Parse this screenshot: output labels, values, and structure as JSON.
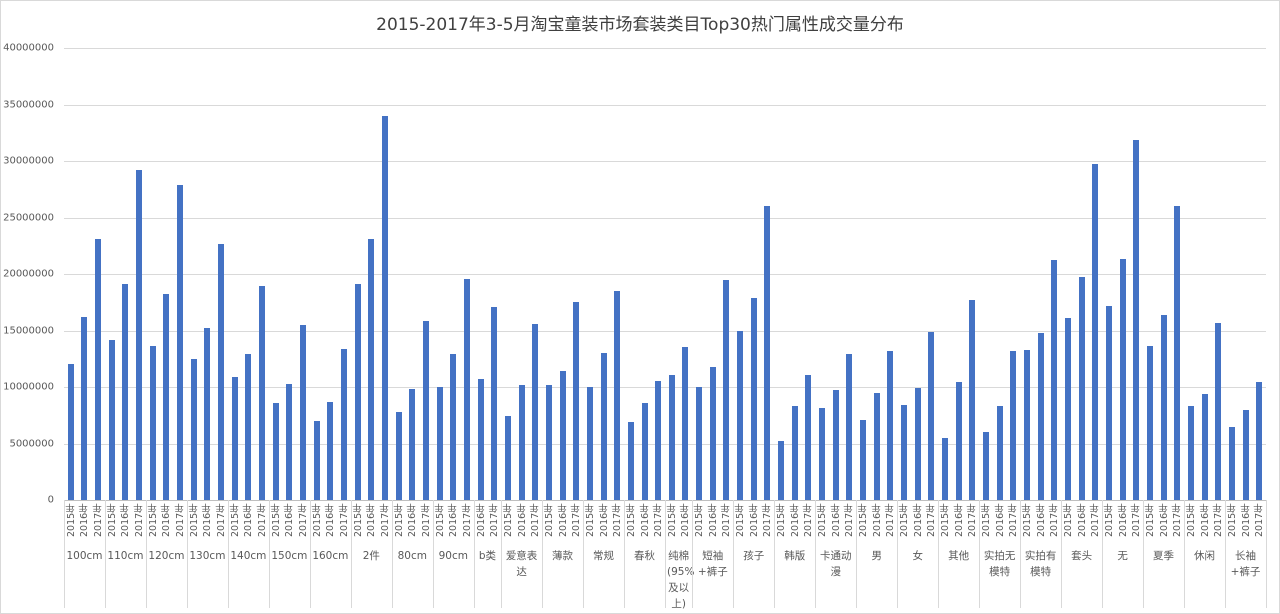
{
  "title": "2015-2017年3-5月淘宝童装市场套装类目Top30热门属性成交量分布",
  "chart_data": {
    "type": "bar",
    "title": "2015-2017年3-5月淘宝童装市场套装类目Top30热门属性成交量分布",
    "xlabel": "",
    "ylabel": "",
    "ylim": [
      0,
      40000000
    ],
    "yticks": [
      "0",
      "5000000",
      "10000000",
      "15000000",
      "20000000",
      "25000000",
      "30000000",
      "35000000",
      "40000000"
    ],
    "grid": true,
    "legend": "none",
    "color": "#4472c4",
    "groups": [
      {
        "category": "100cm",
        "years": [
          "2015年",
          "2016年",
          "2017年"
        ],
        "values": [
          12000000,
          16200000,
          23100000
        ]
      },
      {
        "category": "110cm",
        "years": [
          "2015年",
          "2016年",
          "2017年"
        ],
        "values": [
          14200000,
          19100000,
          29200000
        ]
      },
      {
        "category": "120cm",
        "years": [
          "2015年",
          "2016年",
          "2017年"
        ],
        "values": [
          13600000,
          18200000,
          27900000
        ]
      },
      {
        "category": "130cm",
        "years": [
          "2015年",
          "2016年",
          "2017年"
        ],
        "values": [
          12500000,
          15200000,
          22700000
        ]
      },
      {
        "category": "140cm",
        "years": [
          "2015年",
          "2016年",
          "2017年"
        ],
        "values": [
          10900000,
          12900000,
          18900000
        ]
      },
      {
        "category": "150cm",
        "years": [
          "2015年",
          "2016年",
          "2017年"
        ],
        "values": [
          8600000,
          10300000,
          15500000
        ]
      },
      {
        "category": "160cm",
        "years": [
          "2015年",
          "2016年",
          "2017年"
        ],
        "values": [
          7000000,
          8700000,
          13400000
        ]
      },
      {
        "category": "2件",
        "years": [
          "2015年",
          "2016年",
          "2017年"
        ],
        "values": [
          19100000,
          23100000,
          34000000
        ]
      },
      {
        "category": "80cm",
        "years": [
          "2015年",
          "2016年",
          "2017年"
        ],
        "values": [
          7800000,
          9800000,
          15800000
        ]
      },
      {
        "category": "90cm",
        "years": [
          "2015年",
          "2016年",
          "2017年"
        ],
        "values": [
          10000000,
          12900000,
          19600000
        ]
      },
      {
        "category": "b类",
        "years": [
          "2016年",
          "2017年"
        ],
        "values": [
          10700000,
          17100000
        ]
      },
      {
        "category": "爱意表达",
        "years": [
          "2015年",
          "2016年",
          "2017年"
        ],
        "values": [
          7400000,
          10200000,
          15600000
        ]
      },
      {
        "category": "薄款",
        "years": [
          "2015年",
          "2016年",
          "2017年"
        ],
        "values": [
          10200000,
          11400000,
          17500000
        ]
      },
      {
        "category": "常规",
        "years": [
          "2015年",
          "2016年",
          "2017年"
        ],
        "values": [
          10000000,
          13000000,
          18500000
        ]
      },
      {
        "category": "春秋",
        "years": [
          "2015年",
          "2016年",
          "2017年"
        ],
        "values": [
          6900000,
          8600000,
          10500000
        ]
      },
      {
        "category": "纯棉(95%及以上)",
        "years": [
          "2015年",
          "2016年"
        ],
        "values": [
          11100000,
          13500000
        ]
      },
      {
        "category": "短袖+裤子",
        "years": [
          "2015年",
          "2016年",
          "2017年"
        ],
        "values": [
          10000000,
          11800000,
          19500000
        ]
      },
      {
        "category": "孩子",
        "years": [
          "2015年",
          "2016年",
          "2017年"
        ],
        "values": [
          15000000,
          17900000,
          26000000
        ]
      },
      {
        "category": "韩版",
        "years": [
          "2015年",
          "2016年",
          "2017年"
        ],
        "values": [
          5200000,
          8300000,
          11100000
        ]
      },
      {
        "category": "卡通动漫",
        "years": [
          "2015年",
          "2016年",
          "2017年"
        ],
        "values": [
          8100000,
          9700000,
          12900000
        ]
      },
      {
        "category": "男",
        "years": [
          "2015年",
          "2016年",
          "2017年"
        ],
        "values": [
          7100000,
          9500000,
          13200000
        ]
      },
      {
        "category": "女",
        "years": [
          "2015年",
          "2016年",
          "2017年"
        ],
        "values": [
          8400000,
          9900000,
          14900000
        ]
      },
      {
        "category": "其他",
        "years": [
          "2015年",
          "2016年",
          "2017年"
        ],
        "values": [
          5500000,
          10400000,
          17700000
        ]
      },
      {
        "category": "实拍无模特",
        "years": [
          "2015年",
          "2016年",
          "2017年"
        ],
        "values": [
          6000000,
          8300000,
          13200000
        ]
      },
      {
        "category": "实拍有模特",
        "years": [
          "2015年",
          "2016年",
          "2017年"
        ],
        "values": [
          13300000,
          14800000,
          21200000
        ]
      },
      {
        "category": "套头",
        "years": [
          "2015年",
          "2016年",
          "2017年"
        ],
        "values": [
          16100000,
          19700000,
          29700000
        ]
      },
      {
        "category": "无",
        "years": [
          "2015年",
          "2016年",
          "2017年"
        ],
        "values": [
          17200000,
          21300000,
          31900000
        ]
      },
      {
        "category": "夏季",
        "years": [
          "2015年",
          "2016年",
          "2017年"
        ],
        "values": [
          13600000,
          16400000,
          26000000
        ]
      },
      {
        "category": "休闲",
        "years": [
          "2015年",
          "2016年",
          "2017年"
        ],
        "values": [
          8300000,
          9400000,
          15700000
        ]
      },
      {
        "category": "长袖+裤子",
        "years": [
          "2015年",
          "2016年",
          "2017年"
        ],
        "values": [
          6500000,
          8000000,
          10400000
        ]
      }
    ]
  }
}
